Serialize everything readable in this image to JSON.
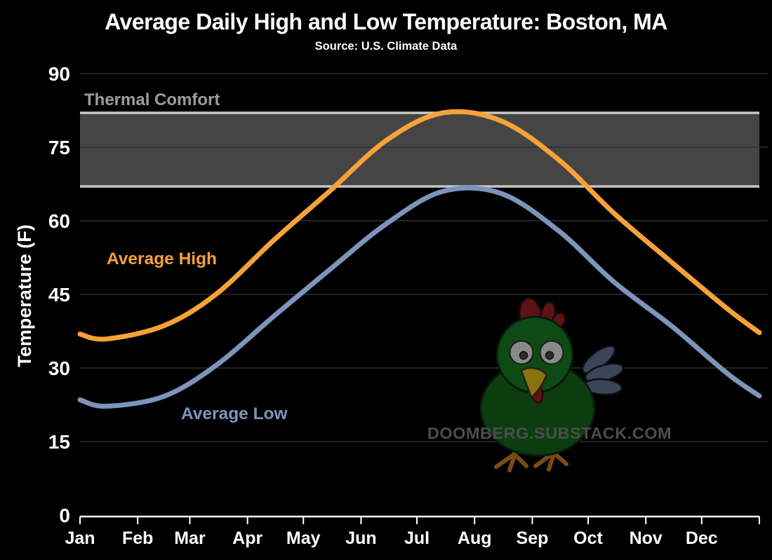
{
  "header": {
    "title": "Average Daily High and Low Temperature: Boston, MA",
    "subtitle": "Source: U.S. Climate Data"
  },
  "watermark": "DOOMBERG.SUBSTACK.COM",
  "colors": {
    "background": "#000000",
    "text": "#FFFFFF",
    "grid": "#2F2F2F",
    "axis": "#FFFFFF",
    "band_fill": "#454545",
    "band_edge": "#C7C7C7",
    "band_label": "#9C9C9C",
    "watermark_text": "#4D4D4D",
    "high_orange": "#F7A238",
    "low_blue": "#7D94BB"
  },
  "chart_data": {
    "type": "line",
    "title": "Average Daily High and Low Temperature: Boston, MA",
    "subtitle": "Source: U.S. Climate Data",
    "xlabel": "",
    "ylabel": "Temperature (F)",
    "months": [
      "Jan",
      "Feb",
      "Mar",
      "Apr",
      "May",
      "Jun",
      "Jul",
      "Aug",
      "Sep",
      "Oct",
      "Nov",
      "Dec"
    ],
    "month_start_days": [
      0,
      31,
      59,
      90,
      120,
      151,
      181,
      212,
      243,
      273,
      304,
      334,
      365
    ],
    "yticks": [
      0,
      15,
      30,
      45,
      60,
      75,
      90
    ],
    "ylim": [
      0,
      90
    ],
    "grid": "horizontal",
    "legend": "inline-annotations",
    "series": [
      {
        "name": "Average High",
        "color": "#F7A238",
        "monthly_values": [
          35.9,
          38.6,
          45,
          56,
          66,
          76.5,
          82,
          80.4,
          72.5,
          61.5,
          51.5,
          42
        ],
        "year_edge_values": [
          36.9,
          37.2
        ]
      },
      {
        "name": "Average Low",
        "color": "#7D94BB",
        "monthly_values": [
          22.2,
          24.2,
          30.5,
          40.5,
          50,
          59.5,
          66,
          65.6,
          58,
          47.5,
          38.5,
          28.8
        ],
        "year_edge_values": [
          23.5,
          24.3
        ]
      }
    ],
    "band": {
      "label": "Thermal Comfort",
      "from_f": 67,
      "to_f": 82
    }
  }
}
